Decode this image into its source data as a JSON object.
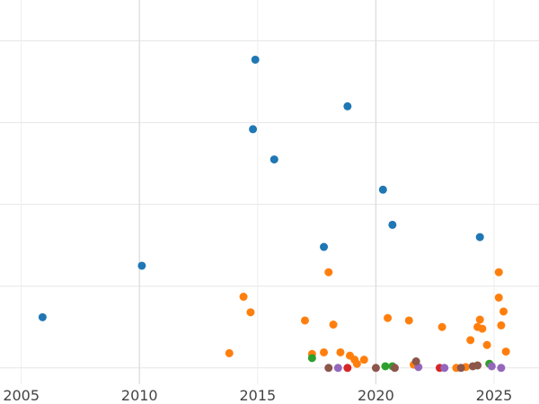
{
  "chart_data": {
    "type": "scatter",
    "title": "",
    "xlabel": "",
    "ylabel": "",
    "x_ticks": [
      "2005",
      "2010",
      "2015",
      "2020",
      "2025"
    ],
    "xlim": [
      2004.1,
      2026.9
    ],
    "ylim": [
      -0.2,
      4.5
    ],
    "grid": true,
    "legend": "none",
    "series": [
      {
        "color": "#1f77b4",
        "points": [
          [
            2005.9,
            0.62
          ],
          [
            2010.1,
            1.25
          ],
          [
            2014.8,
            2.92
          ],
          [
            2014.9,
            3.77
          ],
          [
            2015.7,
            2.55
          ],
          [
            2017.8,
            1.48
          ],
          [
            2018.8,
            3.2
          ],
          [
            2020.3,
            2.18
          ],
          [
            2020.7,
            1.75
          ],
          [
            2024.4,
            1.6
          ]
        ]
      },
      {
        "color": "#ff7f0e",
        "points": [
          [
            2013.8,
            0.18
          ],
          [
            2014.4,
            0.87
          ],
          [
            2014.7,
            0.68
          ],
          [
            2017.0,
            0.58
          ],
          [
            2017.3,
            0.17
          ],
          [
            2017.8,
            0.19
          ],
          [
            2018.0,
            1.17
          ],
          [
            2018.2,
            0.53
          ],
          [
            2018.5,
            0.19
          ],
          [
            2018.9,
            0.15
          ],
          [
            2019.1,
            0.1
          ],
          [
            2019.2,
            0.05
          ],
          [
            2019.5,
            0.1
          ],
          [
            2020.5,
            0.61
          ],
          [
            2021.4,
            0.58
          ],
          [
            2021.6,
            0.04
          ],
          [
            2022.8,
            0.5
          ],
          [
            2023.4,
            0.0
          ],
          [
            2023.8,
            0.01
          ],
          [
            2024.0,
            0.34
          ],
          [
            2024.3,
            0.5
          ],
          [
            2024.4,
            0.59
          ],
          [
            2024.5,
            0.48
          ],
          [
            2024.7,
            0.28
          ],
          [
            2024.8,
            0.05
          ],
          [
            2025.2,
            1.17
          ],
          [
            2025.2,
            0.86
          ],
          [
            2025.3,
            0.52
          ],
          [
            2025.4,
            0.69
          ],
          [
            2025.5,
            0.2
          ]
        ]
      },
      {
        "color": "#2ca02c",
        "points": [
          [
            2017.3,
            0.12
          ],
          [
            2020.4,
            0.02
          ],
          [
            2020.7,
            0.02
          ],
          [
            2024.8,
            0.05
          ]
        ]
      },
      {
        "color": "#d62728",
        "points": [
          [
            2018.8,
            0.0
          ],
          [
            2022.7,
            0.0
          ]
        ]
      },
      {
        "color": "#9467bd",
        "points": [
          [
            2018.4,
            0.0
          ],
          [
            2021.8,
            0.01
          ],
          [
            2022.9,
            0.0
          ],
          [
            2024.9,
            0.02
          ],
          [
            2025.3,
            0.0
          ]
        ]
      },
      {
        "color": "#8c564b",
        "points": [
          [
            2018.0,
            0.0
          ],
          [
            2020.0,
            0.0
          ],
          [
            2020.8,
            0.0
          ],
          [
            2021.7,
            0.08
          ],
          [
            2023.6,
            0.0
          ],
          [
            2024.1,
            0.02
          ],
          [
            2024.3,
            0.03
          ]
        ]
      }
    ]
  }
}
